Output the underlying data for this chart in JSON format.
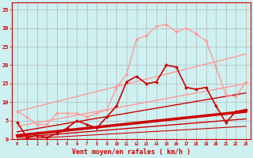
{
  "background_color": "#cff0f0",
  "grid_color": "#aaaaaa",
  "xlabel": "Vent moyen/en rafales ( km/h )",
  "xlabel_color": "#cc0000",
  "ylabel_color": "#cc0000",
  "yticks": [
    0,
    5,
    10,
    15,
    20,
    25,
    30,
    35
  ],
  "xticks": [
    0,
    1,
    2,
    3,
    4,
    5,
    6,
    7,
    8,
    9,
    10,
    11,
    12,
    13,
    14,
    15,
    16,
    17,
    18,
    19,
    20,
    21,
    22,
    23
  ],
  "xlim": [
    -0.5,
    23.5
  ],
  "ylim": [
    0,
    37
  ],
  "series": [
    {
      "x": [
        0,
        1,
        2,
        3,
        4,
        5,
        6,
        7,
        8,
        9,
        10,
        11,
        12,
        13,
        14,
        15,
        16,
        17,
        18,
        19,
        20,
        21,
        22,
        23
      ],
      "y": [
        4.5,
        0.5,
        1.0,
        0.5,
        1.5,
        3.0,
        5.0,
        4.0,
        3.0,
        6.0,
        9.0,
        15.5,
        17.0,
        15.0,
        15.5,
        20.0,
        19.5,
        14.0,
        13.5,
        14.0,
        9.0,
        4.5,
        7.5,
        8.0
      ],
      "color": "#cc0000",
      "linewidth": 1.2,
      "marker": "D",
      "markersize": 2.0,
      "zorder": 5
    },
    {
      "x": [
        0,
        1,
        2,
        3,
        4,
        5,
        6,
        7,
        8,
        9,
        10,
        11,
        12,
        13,
        14,
        15,
        16,
        17,
        18,
        19,
        20,
        21,
        22,
        23
      ],
      "y": [
        7.5,
        6.0,
        4.0,
        4.0,
        7.0,
        7.0,
        7.0,
        6.0,
        7.0,
        8.0,
        14.0,
        17.5,
        27.0,
        28.0,
        30.5,
        31.0,
        29.0,
        30.0,
        28.5,
        26.5,
        19.5,
        12.0,
        11.5,
        15.5
      ],
      "color": "#ff9999",
      "linewidth": 1.0,
      "marker": "D",
      "markersize": 2.0,
      "zorder": 4
    },
    {
      "x": [
        0,
        23
      ],
      "y": [
        7.5,
        23.0
      ],
      "color": "#ff9999",
      "linewidth": 1.0,
      "marker": null,
      "markersize": 0,
      "zorder": 3
    },
    {
      "x": [
        0,
        23
      ],
      "y": [
        3.5,
        15.0
      ],
      "color": "#ff9999",
      "linewidth": 1.0,
      "marker": null,
      "markersize": 0,
      "zorder": 3
    },
    {
      "x": [
        0,
        23
      ],
      "y": [
        2.0,
        12.5
      ],
      "color": "#cc0000",
      "linewidth": 1.0,
      "marker": null,
      "markersize": 0,
      "zorder": 3
    },
    {
      "x": [
        0,
        23
      ],
      "y": [
        1.0,
        7.5
      ],
      "color": "#cc0000",
      "linewidth": 2.5,
      "marker": null,
      "markersize": 0,
      "zorder": 3
    },
    {
      "x": [
        0,
        23
      ],
      "y": [
        0.5,
        5.5
      ],
      "color": "#cc0000",
      "linewidth": 1.0,
      "marker": null,
      "markersize": 0,
      "zorder": 3
    },
    {
      "x": [
        0,
        23
      ],
      "y": [
        0.0,
        3.5
      ],
      "color": "#cc0000",
      "linewidth": 0.8,
      "marker": null,
      "markersize": 0,
      "zorder": 3
    }
  ]
}
